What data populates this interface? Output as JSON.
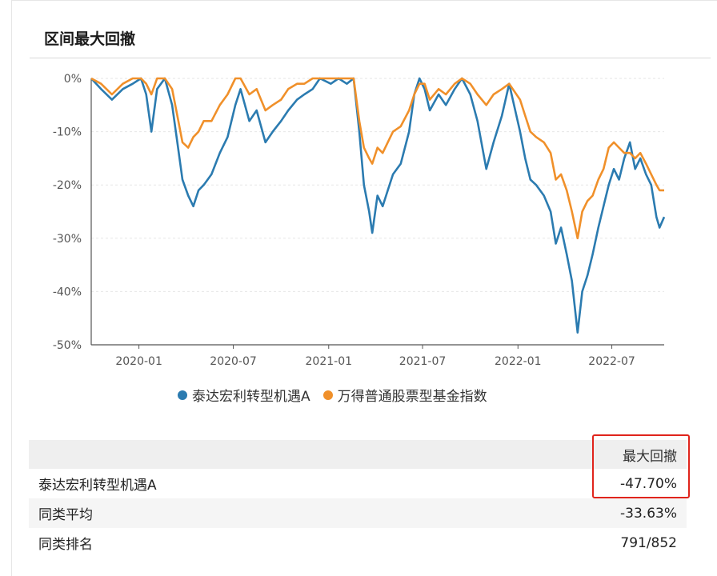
{
  "header": {
    "title": "区间最大回撤"
  },
  "chart_data": {
    "type": "line",
    "x_tick_labels": [
      "2020-01",
      "2020-07",
      "2021-01",
      "2021-07",
      "2022-01",
      "2022-07"
    ],
    "y_tick_labels": [
      "0%",
      "-10%",
      "-20%",
      "-30%",
      "-40%",
      "-50%"
    ],
    "ylim": [
      -50,
      0
    ],
    "grid": true,
    "legend_position": "bottom",
    "series": [
      {
        "name": "泰达宏利转型机遇A",
        "color": "#2b7bb0",
        "points": [
          [
            "2019-10-01",
            0
          ],
          [
            "2019-10-20",
            -2
          ],
          [
            "2019-11-10",
            -4
          ],
          [
            "2019-12-01",
            -2
          ],
          [
            "2019-12-20",
            -1
          ],
          [
            "2020-01-05",
            0
          ],
          [
            "2020-01-15",
            -3
          ],
          [
            "2020-01-25",
            -10
          ],
          [
            "2020-02-05",
            -2
          ],
          [
            "2020-02-20",
            0
          ],
          [
            "2020-03-05",
            -5
          ],
          [
            "2020-03-15",
            -12
          ],
          [
            "2020-03-25",
            -19
          ],
          [
            "2020-04-05",
            -22
          ],
          [
            "2020-04-15",
            -24
          ],
          [
            "2020-04-25",
            -21
          ],
          [
            "2020-05-05",
            -20
          ],
          [
            "2020-05-20",
            -18
          ],
          [
            "2020-06-05",
            -14
          ],
          [
            "2020-06-20",
            -11
          ],
          [
            "2020-07-05",
            -5
          ],
          [
            "2020-07-15",
            -2
          ],
          [
            "2020-08-01",
            -8
          ],
          [
            "2020-08-15",
            -6
          ],
          [
            "2020-09-01",
            -12
          ],
          [
            "2020-09-15",
            -10
          ],
          [
            "2020-10-01",
            -8
          ],
          [
            "2020-10-15",
            -6
          ],
          [
            "2020-11-01",
            -4
          ],
          [
            "2020-11-15",
            -3
          ],
          [
            "2020-12-01",
            -2
          ],
          [
            "2020-12-15",
            0
          ],
          [
            "2021-01-05",
            -1
          ],
          [
            "2021-01-20",
            0
          ],
          [
            "2021-02-05",
            -1
          ],
          [
            "2021-02-18",
            0
          ],
          [
            "2021-03-01",
            -10
          ],
          [
            "2021-03-10",
            -20
          ],
          [
            "2021-03-20",
            -25
          ],
          [
            "2021-03-26",
            -29
          ],
          [
            "2021-04-05",
            -22
          ],
          [
            "2021-04-15",
            -24
          ],
          [
            "2021-04-25",
            -21
          ],
          [
            "2021-05-05",
            -18
          ],
          [
            "2021-05-20",
            -16
          ],
          [
            "2021-06-05",
            -10
          ],
          [
            "2021-06-15",
            -3
          ],
          [
            "2021-06-25",
            0
          ],
          [
            "2021-07-05",
            -2
          ],
          [
            "2021-07-15",
            -6
          ],
          [
            "2021-08-01",
            -3
          ],
          [
            "2021-08-15",
            -5
          ],
          [
            "2021-09-01",
            -2
          ],
          [
            "2021-09-15",
            0
          ],
          [
            "2021-10-01",
            -3
          ],
          [
            "2021-10-15",
            -8
          ],
          [
            "2021-11-01",
            -17
          ],
          [
            "2021-11-15",
            -12
          ],
          [
            "2021-12-01",
            -7
          ],
          [
            "2021-12-15",
            -1
          ],
          [
            "2022-01-05",
            -10
          ],
          [
            "2022-01-15",
            -15
          ],
          [
            "2022-01-25",
            -19
          ],
          [
            "2022-02-05",
            -20
          ],
          [
            "2022-02-20",
            -22
          ],
          [
            "2022-03-05",
            -25
          ],
          [
            "2022-03-15",
            -31
          ],
          [
            "2022-03-25",
            -28
          ],
          [
            "2022-04-05",
            -33
          ],
          [
            "2022-04-15",
            -38
          ],
          [
            "2022-04-26",
            -47.7
          ],
          [
            "2022-05-05",
            -40
          ],
          [
            "2022-05-15",
            -37
          ],
          [
            "2022-05-25",
            -33
          ],
          [
            "2022-06-05",
            -28
          ],
          [
            "2022-06-15",
            -24
          ],
          [
            "2022-06-25",
            -20
          ],
          [
            "2022-07-05",
            -17
          ],
          [
            "2022-07-15",
            -19
          ],
          [
            "2022-07-25",
            -15
          ],
          [
            "2022-08-05",
            -12
          ],
          [
            "2022-08-15",
            -17
          ],
          [
            "2022-08-25",
            -15
          ],
          [
            "2022-09-05",
            -18
          ],
          [
            "2022-09-15",
            -20
          ],
          [
            "2022-09-25",
            -26
          ],
          [
            "2022-10-01",
            -28
          ],
          [
            "2022-10-10",
            -26
          ]
        ]
      },
      {
        "name": "万得普通股票型基金指数",
        "color": "#f0902a",
        "points": [
          [
            "2019-10-01",
            0
          ],
          [
            "2019-10-20",
            -1
          ],
          [
            "2019-11-10",
            -3
          ],
          [
            "2019-12-01",
            -1
          ],
          [
            "2019-12-20",
            0
          ],
          [
            "2020-01-05",
            0
          ],
          [
            "2020-01-15",
            -1
          ],
          [
            "2020-01-25",
            -3
          ],
          [
            "2020-02-05",
            0
          ],
          [
            "2020-02-20",
            0
          ],
          [
            "2020-03-05",
            -2
          ],
          [
            "2020-03-15",
            -7
          ],
          [
            "2020-03-25",
            -12
          ],
          [
            "2020-04-05",
            -13
          ],
          [
            "2020-04-15",
            -11
          ],
          [
            "2020-04-25",
            -10
          ],
          [
            "2020-05-05",
            -8
          ],
          [
            "2020-05-20",
            -8
          ],
          [
            "2020-06-05",
            -5
          ],
          [
            "2020-06-20",
            -3
          ],
          [
            "2020-07-05",
            0
          ],
          [
            "2020-07-15",
            0
          ],
          [
            "2020-08-01",
            -3
          ],
          [
            "2020-08-15",
            -2
          ],
          [
            "2020-09-01",
            -6
          ],
          [
            "2020-09-15",
            -5
          ],
          [
            "2020-10-01",
            -4
          ],
          [
            "2020-10-15",
            -2
          ],
          [
            "2020-11-01",
            -1
          ],
          [
            "2020-11-15",
            -1
          ],
          [
            "2020-12-01",
            0
          ],
          [
            "2020-12-15",
            0
          ],
          [
            "2021-01-05",
            0
          ],
          [
            "2021-01-20",
            0
          ],
          [
            "2021-02-05",
            0
          ],
          [
            "2021-02-18",
            0
          ],
          [
            "2021-03-01",
            -8
          ],
          [
            "2021-03-10",
            -13
          ],
          [
            "2021-03-20",
            -15
          ],
          [
            "2021-03-26",
            -16
          ],
          [
            "2021-04-05",
            -13
          ],
          [
            "2021-04-15",
            -14
          ],
          [
            "2021-04-25",
            -12
          ],
          [
            "2021-05-05",
            -10
          ],
          [
            "2021-05-20",
            -9
          ],
          [
            "2021-06-05",
            -6
          ],
          [
            "2021-06-15",
            -3
          ],
          [
            "2021-06-25",
            -1
          ],
          [
            "2021-07-05",
            -1
          ],
          [
            "2021-07-15",
            -4
          ],
          [
            "2021-08-01",
            -2
          ],
          [
            "2021-08-15",
            -3
          ],
          [
            "2021-09-01",
            -1
          ],
          [
            "2021-09-15",
            0
          ],
          [
            "2021-10-01",
            -1
          ],
          [
            "2021-10-15",
            -3
          ],
          [
            "2021-11-01",
            -5
          ],
          [
            "2021-11-15",
            -3
          ],
          [
            "2021-12-01",
            -2
          ],
          [
            "2021-12-15",
            -1
          ],
          [
            "2022-01-05",
            -4
          ],
          [
            "2022-01-15",
            -7
          ],
          [
            "2022-01-25",
            -10
          ],
          [
            "2022-02-05",
            -11
          ],
          [
            "2022-02-20",
            -12
          ],
          [
            "2022-03-05",
            -14
          ],
          [
            "2022-03-15",
            -19
          ],
          [
            "2022-03-25",
            -18
          ],
          [
            "2022-04-05",
            -21
          ],
          [
            "2022-04-15",
            -25
          ],
          [
            "2022-04-26",
            -30
          ],
          [
            "2022-05-05",
            -25
          ],
          [
            "2022-05-15",
            -23
          ],
          [
            "2022-05-25",
            -22
          ],
          [
            "2022-06-05",
            -19
          ],
          [
            "2022-06-15",
            -17
          ],
          [
            "2022-06-25",
            -13
          ],
          [
            "2022-07-05",
            -12
          ],
          [
            "2022-07-15",
            -13
          ],
          [
            "2022-07-25",
            -14
          ],
          [
            "2022-08-05",
            -14
          ],
          [
            "2022-08-15",
            -15
          ],
          [
            "2022-08-25",
            -14
          ],
          [
            "2022-09-05",
            -16
          ],
          [
            "2022-09-15",
            -18
          ],
          [
            "2022-09-25",
            -20
          ],
          [
            "2022-10-01",
            -21
          ],
          [
            "2022-10-10",
            -21
          ]
        ]
      }
    ]
  },
  "table": {
    "header": [
      "",
      "最大回撤"
    ],
    "rows": [
      {
        "label": "泰达宏利转型机遇A",
        "value": "-47.70%"
      },
      {
        "label": "同类平均",
        "value": "-33.63%"
      },
      {
        "label": "同类排名",
        "value": "791/852"
      }
    ]
  }
}
